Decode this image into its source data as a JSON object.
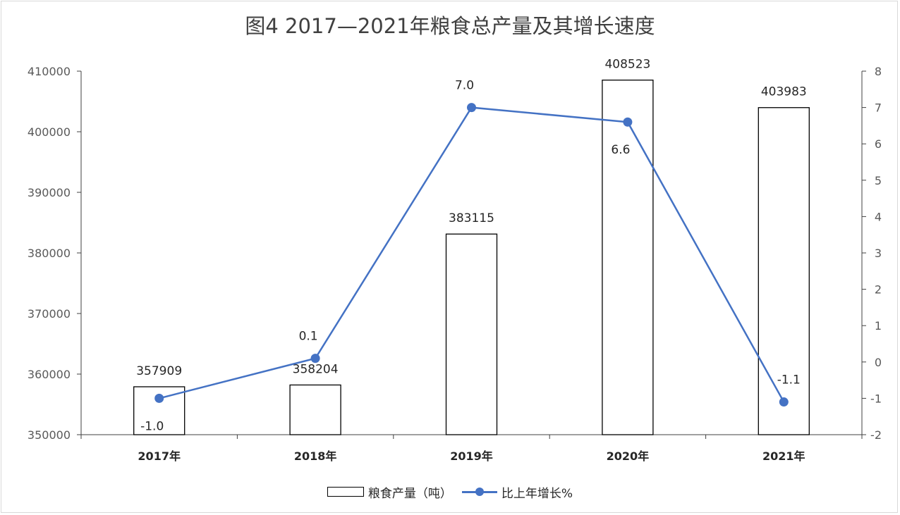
{
  "chart_data": {
    "type": "bar",
    "title": "图4  2017—2021年粮食总产量及其增长速度",
    "categories": [
      "2017年",
      "2018年",
      "2019年",
      "2020年",
      "2021年"
    ],
    "series": [
      {
        "name": "粮食产量（吨）",
        "type": "bar",
        "axis": "left",
        "values": [
          357909,
          358204,
          383115,
          408523,
          403983
        ],
        "labels": [
          "357909",
          "358204",
          "383115",
          "408523",
          "403983"
        ]
      },
      {
        "name": "比上年增长%",
        "type": "line",
        "axis": "right",
        "values": [
          -1.0,
          0.1,
          7.0,
          6.6,
          -1.1
        ],
        "labels": [
          "-1.0",
          "0.1",
          "7.0",
          "6.6",
          "-1.1"
        ],
        "color": "#4472c4"
      }
    ],
    "y_left": {
      "min": 350000,
      "max": 410000,
      "step": 10000,
      "ticks": [
        "350000",
        "360000",
        "370000",
        "380000",
        "390000",
        "400000",
        "410000"
      ]
    },
    "y_right": {
      "min": -2,
      "max": 8,
      "step": 1,
      "ticks": [
        "-2",
        "-1",
        "0",
        "1",
        "2",
        "3",
        "4",
        "5",
        "6",
        "7",
        "8"
      ]
    },
    "legend_position": "bottom",
    "grid": false
  }
}
